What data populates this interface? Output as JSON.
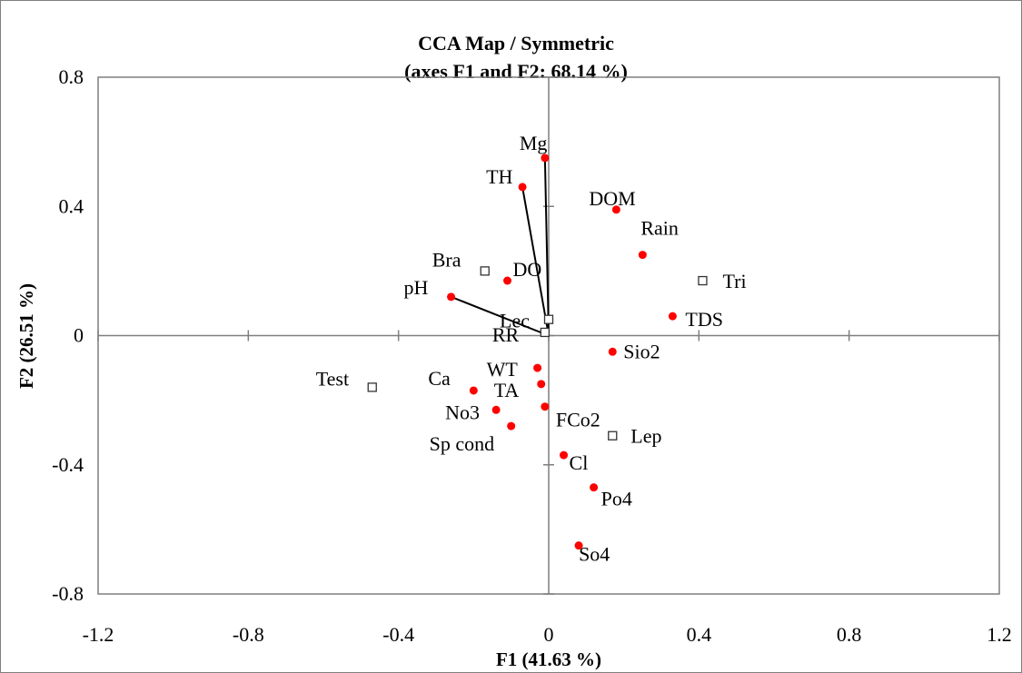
{
  "chart_data": {
    "type": "scatter",
    "title": "CCA Map / Symmetric",
    "subtitle": "(axes F1 and F2: 68.14 %)",
    "xlabel": "F1 (41.63 %)",
    "ylabel": "F2 (26.51 %)",
    "xlim": [
      -1.2,
      1.2
    ],
    "ylim": [
      -0.8,
      0.8
    ],
    "xticks": [
      "-1.2",
      "-0.8",
      "-0.4",
      "0",
      "0.4",
      "0.8",
      "1.2"
    ],
    "yticks": [
      "0.8",
      "0.4",
      "0",
      "-0.4",
      "-0.8"
    ],
    "grid": false,
    "point_color": "#ff0000",
    "variables": [
      {
        "label": "Mg",
        "x": -0.01,
        "y": 0.55,
        "vector": true
      },
      {
        "label": "TH",
        "x": -0.07,
        "y": 0.46,
        "vector": true
      },
      {
        "label": "pH",
        "x": -0.26,
        "y": 0.12,
        "vector": true
      },
      {
        "label": "DOM",
        "x": 0.18,
        "y": 0.39,
        "vector": false
      },
      {
        "label": "Rain",
        "x": 0.25,
        "y": 0.25,
        "vector": false
      },
      {
        "label": "DO",
        "x": -0.11,
        "y": 0.17,
        "vector": false
      },
      {
        "label": "TDS",
        "x": 0.33,
        "y": 0.06,
        "vector": false
      },
      {
        "label": "Sio2",
        "x": 0.17,
        "y": -0.05,
        "vector": false
      },
      {
        "label": "WT",
        "x": -0.03,
        "y": -0.1,
        "vector": false
      },
      {
        "label": "TA",
        "x": -0.02,
        "y": -0.15,
        "vector": false
      },
      {
        "label": "Ca",
        "x": -0.2,
        "y": -0.17,
        "vector": false
      },
      {
        "label": "No3",
        "x": -0.14,
        "y": -0.23,
        "vector": false
      },
      {
        "label": "FCo2",
        "x": -0.01,
        "y": -0.22,
        "vector": false
      },
      {
        "label": "Sp cond",
        "x": -0.1,
        "y": -0.28,
        "vector": false
      },
      {
        "label": "Cl",
        "x": 0.04,
        "y": -0.37,
        "vector": false
      },
      {
        "label": "Po4",
        "x": 0.12,
        "y": -0.47,
        "vector": false
      },
      {
        "label": "So4",
        "x": 0.08,
        "y": -0.65,
        "vector": false
      }
    ],
    "objects": [
      {
        "label": "Bra",
        "x": -0.17,
        "y": 0.2
      },
      {
        "label": "Tri",
        "x": 0.41,
        "y": 0.17
      },
      {
        "label": "Lec",
        "x": 0.0,
        "y": 0.05
      },
      {
        "label": "RR",
        "x": -0.01,
        "y": 0.01
      },
      {
        "label": "Test",
        "x": -0.47,
        "y": -0.16
      },
      {
        "label": "Lep",
        "x": 0.17,
        "y": -0.31
      }
    ]
  }
}
